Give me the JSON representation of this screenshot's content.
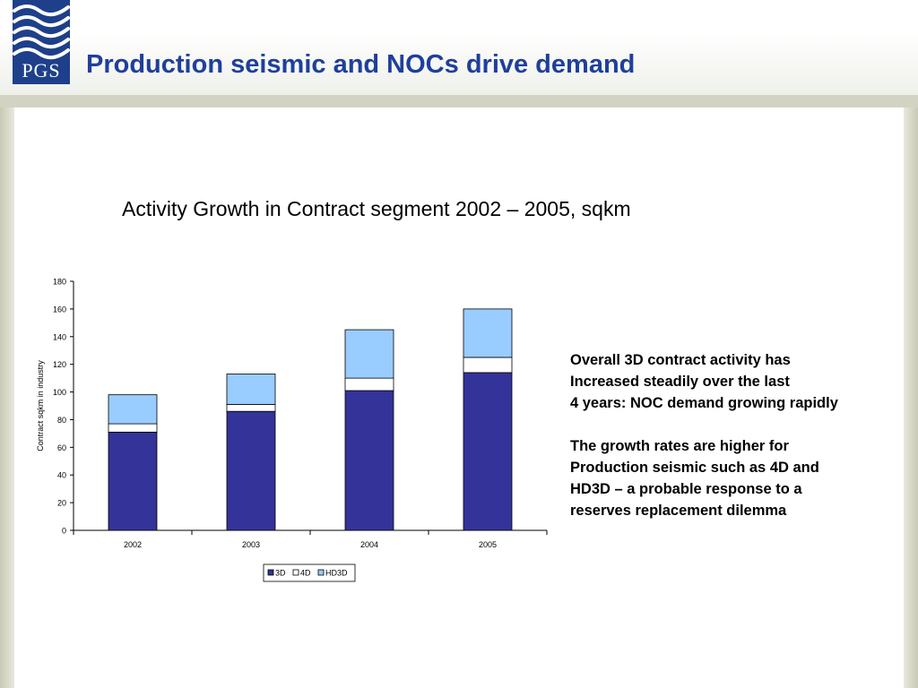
{
  "header": {
    "logo_text": "PGS",
    "title": "Production seismic and NOCs drive demand"
  },
  "colors": {
    "title_blue": "#1f3f9c",
    "logo_blue": "#1e3f8a",
    "series_3d": "#333399",
    "series_4d": "#ffffff",
    "series_hd3d": "#99ccff"
  },
  "chart_data": {
    "type": "bar",
    "stacked": true,
    "title": "Activity Growth in Contract segment 2002 – 2005, sqkm",
    "xlabel": "",
    "ylabel": "Contract sqkm in industry",
    "ylim": [
      0,
      180
    ],
    "yticks": [
      0,
      20,
      40,
      60,
      80,
      100,
      120,
      140,
      160,
      180
    ],
    "categories": [
      "2002",
      "2003",
      "2004",
      "2005"
    ],
    "series": [
      {
        "name": "3D",
        "color": "#333399",
        "values": [
          71,
          86,
          101,
          114
        ]
      },
      {
        "name": "4D",
        "color": "#ffffff",
        "values": [
          6,
          5,
          9,
          11
        ]
      },
      {
        "name": "HD3D",
        "color": "#99ccff",
        "values": [
          21,
          22,
          35,
          35
        ]
      }
    ],
    "legend_position": "bottom-center"
  },
  "notes": [
    "Overall 3D contract activity has\nIncreased steadily over the last\n4 years: NOC demand growing rapidly",
    "The growth rates are higher for\nProduction seismic such as 4D and\nHD3D – a probable response to a\nreserves replacement dilemma"
  ]
}
